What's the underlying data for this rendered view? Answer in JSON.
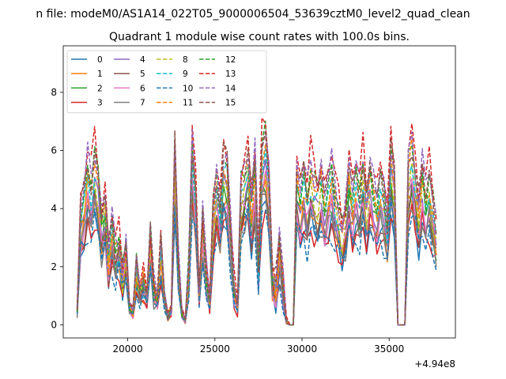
{
  "chart_data": {
    "type": "line",
    "suptitle": "n file: modeM0/AS1A14_022T05_9000006504_53639cztM0_level2_quad_clean",
    "title": "Quadrant 1 module wise count rates with 100.0s bins.",
    "xlabel": "",
    "ylabel": "",
    "x_offset_label": "+4.94e8",
    "xlim": [
      16300,
      38800
    ],
    "ylim": [
      -0.45,
      9.6
    ],
    "xticks": [
      20000,
      25000,
      30000,
      35000
    ],
    "xtick_labels": [
      "20000",
      "25000",
      "30000",
      "35000"
    ],
    "yticks": [
      0,
      2,
      4,
      6,
      8
    ],
    "ytick_labels": [
      "0",
      "2",
      "4",
      "6",
      "8"
    ],
    "legend_position": "top-left",
    "legend_columns": 4,
    "series": [
      {
        "name": "0",
        "color": "#1f77b4",
        "dash": "solid",
        "scale": 0.78
      },
      {
        "name": "1",
        "color": "#ff7f0e",
        "dash": "solid",
        "scale": 0.85
      },
      {
        "name": "2",
        "color": "#2ca02c",
        "dash": "solid",
        "scale": 0.9
      },
      {
        "name": "3",
        "color": "#d62728",
        "dash": "solid",
        "scale": 0.74
      },
      {
        "name": "4",
        "color": "#9467bd",
        "dash": "solid",
        "scale": 0.95
      },
      {
        "name": "5",
        "color": "#8c564b",
        "dash": "solid",
        "scale": 0.82
      },
      {
        "name": "6",
        "color": "#e377c2",
        "dash": "solid",
        "scale": 0.88
      },
      {
        "name": "7",
        "color": "#7f7f7f",
        "dash": "solid",
        "scale": 0.8
      },
      {
        "name": "8",
        "color": "#bcbd22",
        "dash": "dashed",
        "scale": 1.02
      },
      {
        "name": "9",
        "color": "#17becf",
        "dash": "dashed",
        "scale": 1.06
      },
      {
        "name": "10",
        "color": "#1f77b4",
        "dash": "dashed",
        "scale": 0.72
      },
      {
        "name": "11",
        "color": "#ff7f0e",
        "dash": "dashed",
        "scale": 1.1
      },
      {
        "name": "12",
        "color": "#2ca02c",
        "dash": "dashed",
        "scale": 1.15
      },
      {
        "name": "13",
        "color": "#d62728",
        "dash": "dashed",
        "scale": 1.28
      },
      {
        "name": "14",
        "color": "#9467bd",
        "dash": "dashed",
        "scale": 1.22
      },
      {
        "name": "15",
        "color": "#8c564b",
        "dash": "dashed",
        "scale": 1.18
      }
    ],
    "base_profile": {
      "x": [
        17100,
        17300,
        17500,
        17700,
        17900,
        18100,
        18300,
        18500,
        18700,
        18900,
        19100,
        19300,
        19500,
        19700,
        19900,
        20100,
        20300,
        20500,
        20700,
        20900,
        21100,
        21300,
        21500,
        21700,
        21900,
        22100,
        22300,
        22500,
        22700,
        22900,
        23100,
        23300,
        23500,
        23700,
        23900,
        24100,
        24300,
        24500,
        24700,
        24900,
        25100,
        25300,
        25500,
        25700,
        25900,
        26100,
        26300,
        26500,
        26700,
        26900,
        27100,
        27300,
        27500,
        27700,
        27900,
        28100,
        28300,
        28500,
        28700,
        28900,
        29100,
        29300,
        29500,
        29700,
        29900,
        30100,
        30300,
        30500,
        30700,
        30900,
        31100,
        31300,
        31500,
        31700,
        31900,
        32100,
        32300,
        32500,
        32700,
        32900,
        33100,
        33300,
        33500,
        33700,
        33900,
        34100,
        34300,
        34500,
        34700,
        34900,
        35100,
        35300,
        35500,
        35700,
        35900,
        36100,
        36300,
        36500,
        36700,
        36900,
        37100,
        37300,
        37500,
        37700
      ],
      "y": [
        0.5,
        3.4,
        3.8,
        4.7,
        4.2,
        5.1,
        4.4,
        3.2,
        3.7,
        2.1,
        3.0,
        2.2,
        2.6,
        1.6,
        2.4,
        0.6,
        0.4,
        1.8,
        1.0,
        1.4,
        0.9,
        2.8,
        1.2,
        0.8,
        2.4,
        0.9,
        0.3,
        0.5,
        5.3,
        2.0,
        0.4,
        0.1,
        1.7,
        5.4,
        4.1,
        1.0,
        3.2,
        1.6,
        0.7,
        3.4,
        4.4,
        3.6,
        5.0,
        4.7,
        2.8,
        1.1,
        0.6,
        4.2,
        4.6,
        5.0,
        3.6,
        4.8,
        1.8,
        5.2,
        5.6,
        4.5,
        1.6,
        1.2,
        2.4,
        1.3,
        0.1,
        0.0,
        0.0,
        4.6,
        3.9,
        4.4,
        3.8,
        4.7,
        4.3,
        4.0,
        4.5,
        3.7,
        4.1,
        4.6,
        3.9,
        3.5,
        2.9,
        3.4,
        4.6,
        3.8,
        4.4,
        4.0,
        4.9,
        3.7,
        4.6,
        4.1,
        3.6,
        4.3,
        3.9,
        3.1,
        5.3,
        4.4,
        0.0,
        0.0,
        0.0,
        4.8,
        5.4,
        4.5,
        3.6,
        4.6,
        3.8,
        4.4,
        3.6,
        3.0
      ]
    }
  }
}
